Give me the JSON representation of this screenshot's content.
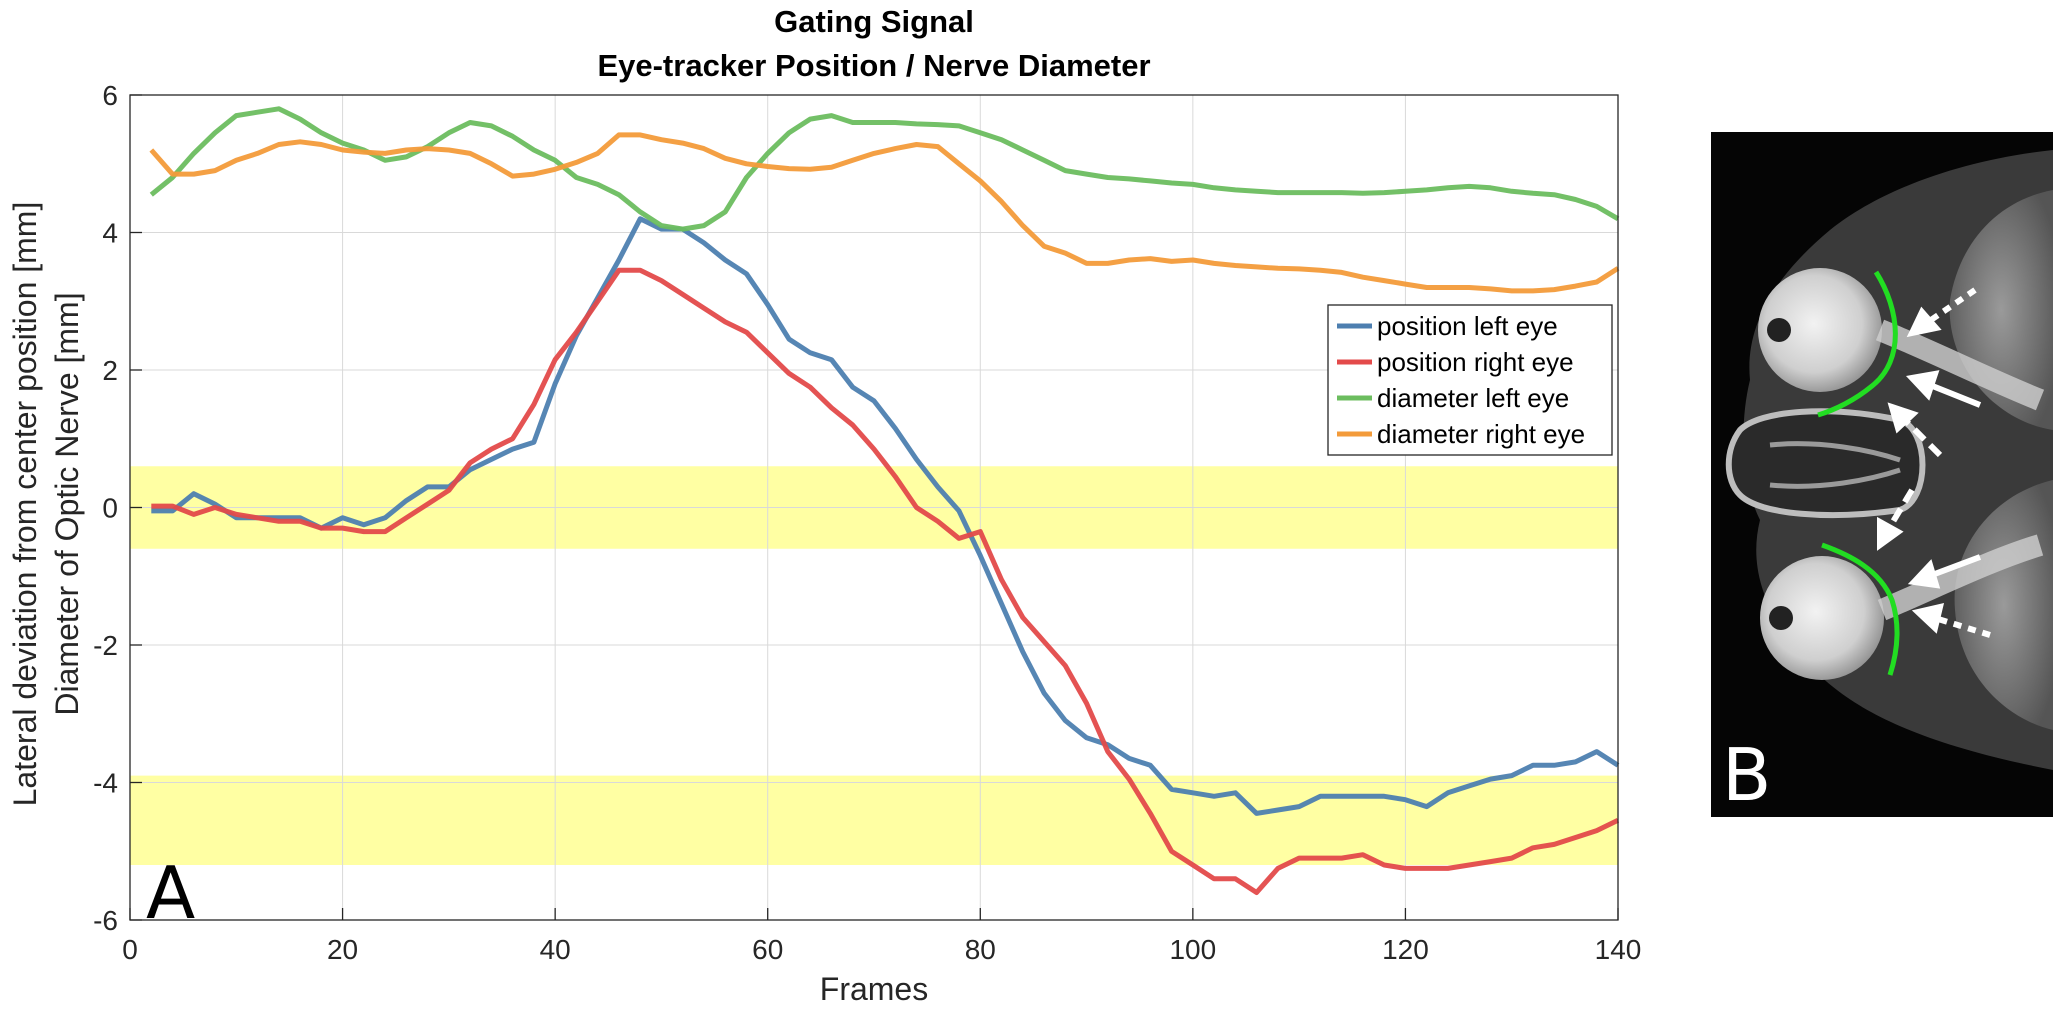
{
  "chart_data": {
    "type": "line",
    "title": [
      "Gating Signal",
      "Eye-tracker Position / Nerve Diameter"
    ],
    "xlabel": "Frames",
    "ylabel": [
      "Lateral deviation from center position [mm]",
      "Diameter of Optic Nerve [mm]"
    ],
    "xlim": [
      0,
      140
    ],
    "ylim": [
      -6,
      6
    ],
    "xticks": [
      0,
      20,
      40,
      60,
      80,
      100,
      120,
      140
    ],
    "yticks": [
      -6,
      -4,
      -2,
      0,
      2,
      4,
      6
    ],
    "grid": true,
    "legend_position": "right",
    "bands": [
      {
        "y0": -0.6,
        "y1": 0.6,
        "color": "#ffff99"
      },
      {
        "y0": -5.2,
        "y1": -3.9,
        "color": "#ffff99"
      }
    ],
    "series": [
      {
        "name": "position left eye",
        "color": "#4d7fb0",
        "points": [
          [
            2,
            -0.05
          ],
          [
            4,
            -0.05
          ],
          [
            6,
            0.2
          ],
          [
            8,
            0.05
          ],
          [
            10,
            -0.15
          ],
          [
            12,
            -0.15
          ],
          [
            14,
            -0.15
          ],
          [
            16,
            -0.15
          ],
          [
            18,
            -0.3
          ],
          [
            20,
            -0.15
          ],
          [
            22,
            -0.25
          ],
          [
            24,
            -0.15
          ],
          [
            26,
            0.1
          ],
          [
            28,
            0.3
          ],
          [
            30,
            0.3
          ],
          [
            32,
            0.55
          ],
          [
            34,
            0.7
          ],
          [
            36,
            0.85
          ],
          [
            38,
            0.95
          ],
          [
            40,
            1.8
          ],
          [
            42,
            2.5
          ],
          [
            44,
            3.05
          ],
          [
            46,
            3.6
          ],
          [
            48,
            4.2
          ],
          [
            50,
            4.05
          ],
          [
            52,
            4.05
          ],
          [
            54,
            3.85
          ],
          [
            56,
            3.6
          ],
          [
            58,
            3.4
          ],
          [
            60,
            2.95
          ],
          [
            62,
            2.45
          ],
          [
            64,
            2.25
          ],
          [
            66,
            2.15
          ],
          [
            68,
            1.75
          ],
          [
            70,
            1.55
          ],
          [
            72,
            1.15
          ],
          [
            74,
            0.7
          ],
          [
            76,
            0.3
          ],
          [
            78,
            -0.05
          ],
          [
            80,
            -0.7
          ],
          [
            82,
            -1.4
          ],
          [
            84,
            -2.1
          ],
          [
            86,
            -2.7
          ],
          [
            88,
            -3.1
          ],
          [
            90,
            -3.35
          ],
          [
            92,
            -3.45
          ],
          [
            94,
            -3.65
          ],
          [
            96,
            -3.75
          ],
          [
            98,
            -4.1
          ],
          [
            100,
            -4.15
          ],
          [
            102,
            -4.2
          ],
          [
            104,
            -4.15
          ],
          [
            106,
            -4.45
          ],
          [
            108,
            -4.4
          ],
          [
            110,
            -4.35
          ],
          [
            112,
            -4.2
          ],
          [
            114,
            -4.2
          ],
          [
            116,
            -4.2
          ],
          [
            118,
            -4.2
          ],
          [
            120,
            -4.25
          ],
          [
            122,
            -4.35
          ],
          [
            124,
            -4.15
          ],
          [
            126,
            -4.05
          ],
          [
            128,
            -3.95
          ],
          [
            130,
            -3.9
          ],
          [
            132,
            -3.75
          ],
          [
            134,
            -3.75
          ],
          [
            136,
            -3.7
          ],
          [
            138,
            -3.55
          ],
          [
            140,
            -3.75
          ]
        ]
      },
      {
        "name": "position right eye",
        "color": "#e34a4a",
        "points": [
          [
            2,
            0.02
          ],
          [
            4,
            0.02
          ],
          [
            6,
            -0.1
          ],
          [
            8,
            0.0
          ],
          [
            10,
            -0.1
          ],
          [
            12,
            -0.15
          ],
          [
            14,
            -0.2
          ],
          [
            16,
            -0.2
          ],
          [
            18,
            -0.3
          ],
          [
            20,
            -0.3
          ],
          [
            22,
            -0.35
          ],
          [
            24,
            -0.35
          ],
          [
            26,
            -0.15
          ],
          [
            28,
            0.05
          ],
          [
            30,
            0.25
          ],
          [
            32,
            0.65
          ],
          [
            34,
            0.85
          ],
          [
            36,
            1.0
          ],
          [
            38,
            1.5
          ],
          [
            40,
            2.15
          ],
          [
            42,
            2.55
          ],
          [
            44,
            3.0
          ],
          [
            46,
            3.45
          ],
          [
            48,
            3.45
          ],
          [
            50,
            3.3
          ],
          [
            52,
            3.1
          ],
          [
            54,
            2.9
          ],
          [
            56,
            2.7
          ],
          [
            58,
            2.55
          ],
          [
            60,
            2.25
          ],
          [
            62,
            1.95
          ],
          [
            64,
            1.75
          ],
          [
            66,
            1.45
          ],
          [
            68,
            1.2
          ],
          [
            70,
            0.85
          ],
          [
            72,
            0.45
          ],
          [
            74,
            0.0
          ],
          [
            76,
            -0.2
          ],
          [
            78,
            -0.45
          ],
          [
            80,
            -0.35
          ],
          [
            82,
            -1.05
          ],
          [
            84,
            -1.6
          ],
          [
            86,
            -1.95
          ],
          [
            88,
            -2.3
          ],
          [
            90,
            -2.85
          ],
          [
            92,
            -3.55
          ],
          [
            94,
            -3.95
          ],
          [
            96,
            -4.45
          ],
          [
            98,
            -5.0
          ],
          [
            100,
            -5.2
          ],
          [
            102,
            -5.4
          ],
          [
            104,
            -5.4
          ],
          [
            106,
            -5.6
          ],
          [
            108,
            -5.25
          ],
          [
            110,
            -5.1
          ],
          [
            112,
            -5.1
          ],
          [
            114,
            -5.1
          ],
          [
            116,
            -5.05
          ],
          [
            118,
            -5.2
          ],
          [
            120,
            -5.25
          ],
          [
            122,
            -5.25
          ],
          [
            124,
            -5.25
          ],
          [
            126,
            -5.2
          ],
          [
            128,
            -5.15
          ],
          [
            130,
            -5.1
          ],
          [
            132,
            -4.95
          ],
          [
            134,
            -4.9
          ],
          [
            136,
            -4.8
          ],
          [
            138,
            -4.7
          ],
          [
            140,
            -4.55
          ]
        ]
      },
      {
        "name": "diameter left eye",
        "color": "#6cbd5f",
        "points": [
          [
            2,
            4.55
          ],
          [
            4,
            4.8
          ],
          [
            6,
            5.15
          ],
          [
            8,
            5.45
          ],
          [
            10,
            5.7
          ],
          [
            12,
            5.75
          ],
          [
            14,
            5.8
          ],
          [
            16,
            5.65
          ],
          [
            18,
            5.45
          ],
          [
            20,
            5.3
          ],
          [
            22,
            5.2
          ],
          [
            24,
            5.05
          ],
          [
            26,
            5.1
          ],
          [
            28,
            5.25
          ],
          [
            30,
            5.45
          ],
          [
            32,
            5.6
          ],
          [
            34,
            5.55
          ],
          [
            36,
            5.4
          ],
          [
            38,
            5.2
          ],
          [
            40,
            5.05
          ],
          [
            42,
            4.8
          ],
          [
            44,
            4.7
          ],
          [
            46,
            4.55
          ],
          [
            48,
            4.3
          ],
          [
            50,
            4.1
          ],
          [
            52,
            4.05
          ],
          [
            54,
            4.1
          ],
          [
            56,
            4.3
          ],
          [
            58,
            4.8
          ],
          [
            60,
            5.15
          ],
          [
            62,
            5.45
          ],
          [
            64,
            5.65
          ],
          [
            66,
            5.7
          ],
          [
            68,
            5.6
          ],
          [
            70,
            5.6
          ],
          [
            72,
            5.6
          ],
          [
            74,
            5.58
          ],
          [
            76,
            5.57
          ],
          [
            78,
            5.55
          ],
          [
            80,
            5.45
          ],
          [
            82,
            5.35
          ],
          [
            84,
            5.2
          ],
          [
            86,
            5.05
          ],
          [
            88,
            4.9
          ],
          [
            90,
            4.85
          ],
          [
            92,
            4.8
          ],
          [
            94,
            4.78
          ],
          [
            96,
            4.75
          ],
          [
            98,
            4.72
          ],
          [
            100,
            4.7
          ],
          [
            102,
            4.65
          ],
          [
            104,
            4.62
          ],
          [
            106,
            4.6
          ],
          [
            108,
            4.58
          ],
          [
            110,
            4.58
          ],
          [
            112,
            4.58
          ],
          [
            114,
            4.58
          ],
          [
            116,
            4.57
          ],
          [
            118,
            4.58
          ],
          [
            120,
            4.6
          ],
          [
            122,
            4.62
          ],
          [
            124,
            4.65
          ],
          [
            126,
            4.67
          ],
          [
            128,
            4.65
          ],
          [
            130,
            4.6
          ],
          [
            132,
            4.57
          ],
          [
            134,
            4.55
          ],
          [
            136,
            4.48
          ],
          [
            138,
            4.38
          ],
          [
            140,
            4.2
          ]
        ]
      },
      {
        "name": "diameter right eye",
        "color": "#f39b3a",
        "points": [
          [
            2,
            5.2
          ],
          [
            4,
            4.85
          ],
          [
            6,
            4.85
          ],
          [
            8,
            4.9
          ],
          [
            10,
            5.05
          ],
          [
            12,
            5.15
          ],
          [
            14,
            5.28
          ],
          [
            16,
            5.32
          ],
          [
            18,
            5.28
          ],
          [
            20,
            5.2
          ],
          [
            22,
            5.17
          ],
          [
            24,
            5.15
          ],
          [
            26,
            5.2
          ],
          [
            28,
            5.22
          ],
          [
            30,
            5.2
          ],
          [
            32,
            5.15
          ],
          [
            34,
            5.0
          ],
          [
            36,
            4.82
          ],
          [
            38,
            4.85
          ],
          [
            40,
            4.92
          ],
          [
            42,
            5.02
          ],
          [
            44,
            5.15
          ],
          [
            46,
            5.42
          ],
          [
            48,
            5.42
          ],
          [
            50,
            5.35
          ],
          [
            52,
            5.3
          ],
          [
            54,
            5.22
          ],
          [
            56,
            5.08
          ],
          [
            58,
            5.0
          ],
          [
            60,
            4.96
          ],
          [
            62,
            4.93
          ],
          [
            64,
            4.92
          ],
          [
            66,
            4.95
          ],
          [
            68,
            5.05
          ],
          [
            70,
            5.15
          ],
          [
            72,
            5.22
          ],
          [
            74,
            5.28
          ],
          [
            76,
            5.25
          ],
          [
            78,
            5.0
          ],
          [
            80,
            4.75
          ],
          [
            82,
            4.45
          ],
          [
            84,
            4.1
          ],
          [
            86,
            3.8
          ],
          [
            88,
            3.7
          ],
          [
            90,
            3.55
          ],
          [
            92,
            3.55
          ],
          [
            94,
            3.6
          ],
          [
            96,
            3.62
          ],
          [
            98,
            3.58
          ],
          [
            100,
            3.6
          ],
          [
            102,
            3.55
          ],
          [
            104,
            3.52
          ],
          [
            106,
            3.5
          ],
          [
            108,
            3.48
          ],
          [
            110,
            3.47
          ],
          [
            112,
            3.45
          ],
          [
            114,
            3.42
          ],
          [
            116,
            3.35
          ],
          [
            118,
            3.3
          ],
          [
            120,
            3.25
          ],
          [
            122,
            3.2
          ],
          [
            124,
            3.2
          ],
          [
            126,
            3.2
          ],
          [
            128,
            3.18
          ],
          [
            130,
            3.15
          ],
          [
            132,
            3.15
          ],
          [
            134,
            3.17
          ],
          [
            136,
            3.22
          ],
          [
            138,
            3.28
          ],
          [
            140,
            3.48
          ]
        ]
      }
    ]
  },
  "panels": {
    "left_letter": "A",
    "right_letter": "B"
  }
}
